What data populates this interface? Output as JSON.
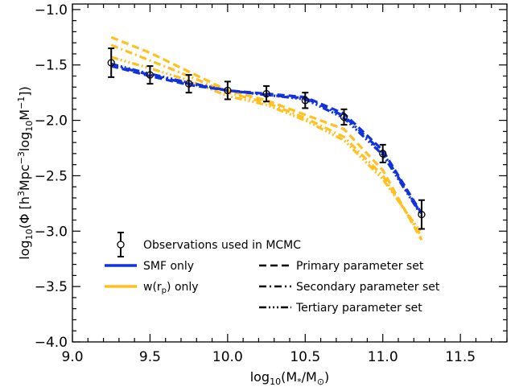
{
  "chart_data": {
    "type": "line",
    "xlabel": "log10(M*/M⊙)",
    "ylabel": "log10(Φ [h³Mpc⁻³log10M⁻¹])",
    "xlim": [
      9.0,
      11.8
    ],
    "ylim": [
      -4.0,
      -0.95
    ],
    "x_ticks": [
      {
        "value": 9.0,
        "label": "9.0"
      },
      {
        "value": 9.5,
        "label": "9.5"
      },
      {
        "value": 10.0,
        "label": "10.0"
      },
      {
        "value": 10.5,
        "label": "10.5"
      },
      {
        "value": 11.0,
        "label": "11.0"
      },
      {
        "value": 11.5,
        "label": "11.5"
      }
    ],
    "y_ticks": [
      {
        "value": -1.0,
        "label": "−1.0"
      },
      {
        "value": -1.5,
        "label": "−1.5"
      },
      {
        "value": -2.0,
        "label": "−2.0"
      },
      {
        "value": -2.5,
        "label": "−2.5"
      },
      {
        "value": -3.0,
        "label": "−3.0"
      },
      {
        "value": -3.5,
        "label": "−3.5"
      },
      {
        "value": -4.0,
        "label": "−4.0"
      }
    ],
    "grid": false,
    "legend_position": "bottom-left",
    "colors": {
      "smf": "#1133dd",
      "wrp": "#ffc020",
      "obs": "#000000"
    },
    "observations": {
      "name": "Observations used in MCMC",
      "x": [
        9.25,
        9.5,
        9.75,
        10.0,
        10.25,
        10.5,
        10.75,
        11.0,
        11.25
      ],
      "y": [
        -1.48,
        -1.59,
        -1.67,
        -1.73,
        -1.76,
        -1.82,
        -1.97,
        -2.3,
        -2.85
      ],
      "err": [
        0.13,
        0.08,
        0.08,
        0.08,
        0.07,
        0.07,
        0.07,
        0.08,
        0.13
      ]
    },
    "legend": {
      "observations": "Observations used in MCMC",
      "smf": "SMF only",
      "wrp": "w(rₚ) only",
      "primary": "Primary parameter set",
      "secondary": "Secondary parameter set",
      "tertiary": "Tertiary parameter set"
    },
    "series": [
      {
        "group": "smf",
        "style": "primary",
        "x": [
          9.25,
          9.5,
          9.75,
          10.0,
          10.25,
          10.5,
          10.75,
          11.0,
          11.25
        ],
        "y": [
          -1.51,
          -1.6,
          -1.68,
          -1.73,
          -1.76,
          -1.79,
          -1.94,
          -2.27,
          -2.84
        ]
      },
      {
        "group": "smf",
        "style": "secondary",
        "x": [
          9.25,
          9.5,
          9.75,
          10.0,
          10.25,
          10.5,
          10.75,
          11.0,
          11.25
        ],
        "y": [
          -1.5,
          -1.59,
          -1.67,
          -1.73,
          -1.77,
          -1.8,
          -1.96,
          -2.29,
          -2.85
        ]
      },
      {
        "group": "smf",
        "style": "tertiary",
        "x": [
          9.25,
          9.5,
          9.75,
          10.0,
          10.25,
          10.5,
          10.75,
          11.0,
          11.25
        ],
        "y": [
          -1.49,
          -1.58,
          -1.66,
          -1.73,
          -1.77,
          -1.81,
          -1.98,
          -2.31,
          -2.86
        ]
      },
      {
        "group": "wrp",
        "style": "primary",
        "x": [
          9.25,
          9.5,
          9.75,
          10.0,
          10.25,
          10.5,
          10.75,
          11.0,
          11.25
        ],
        "y": [
          -1.25,
          -1.39,
          -1.56,
          -1.73,
          -1.82,
          -1.95,
          -2.08,
          -2.45,
          -3.08
        ]
      },
      {
        "group": "wrp",
        "style": "secondary",
        "x": [
          9.25,
          9.5,
          9.75,
          10.0,
          10.25,
          10.5,
          10.75,
          11.0,
          11.25
        ],
        "y": [
          -1.32,
          -1.46,
          -1.6,
          -1.75,
          -1.84,
          -1.98,
          -2.15,
          -2.5,
          -3.05
        ]
      },
      {
        "group": "wrp",
        "style": "tertiary",
        "x": [
          9.25,
          9.5,
          9.75,
          10.0,
          10.25,
          10.5,
          10.75,
          11.0,
          11.25
        ],
        "y": [
          -1.43,
          -1.53,
          -1.64,
          -1.78,
          -1.86,
          -2.0,
          -2.18,
          -2.53,
          -3.02
        ]
      }
    ]
  }
}
